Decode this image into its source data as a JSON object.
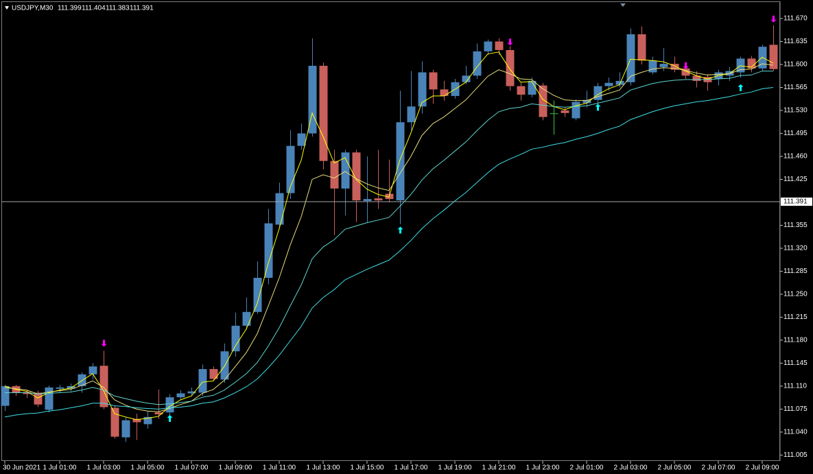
{
  "chart_data": {
    "type": "candlestick",
    "header": {
      "symbol": "USDJPY,M30",
      "ohlc": [
        "111.399",
        "111.404",
        "111.383",
        "111.391"
      ]
    },
    "categories": [
      "30 Jun 2021",
      null,
      null,
      null,
      null,
      "1 Jul 01:00",
      null,
      null,
      null,
      "1 Jul 03:00",
      null,
      null,
      null,
      "1 Jul 05:00",
      null,
      null,
      null,
      "1 Jul 07:00",
      null,
      null,
      null,
      "1 Jul 09:00",
      null,
      null,
      null,
      "1 Jul 11:00",
      null,
      null,
      null,
      "1 Jul 13:00",
      null,
      null,
      null,
      "1 Jul 15:00",
      null,
      null,
      null,
      "1 Jul 17:00",
      null,
      null,
      null,
      "1 Jul 19:00",
      null,
      null,
      null,
      "1 Jul 21:00",
      null,
      null,
      null,
      "1 Jul 23:00",
      null,
      null,
      null,
      "2 Jul 01:00",
      null,
      null,
      null,
      "2 Jul 03:00",
      null,
      null,
      null,
      "2 Jul 05:00",
      null,
      null,
      null,
      "2 Jul 07:00",
      null,
      null,
      null,
      "2 Jul 09:00",
      null
    ],
    "open": [
      111.08,
      111.11,
      111.101,
      111.1,
      111.074,
      111.106,
      111.106,
      111.11,
      111.128,
      111.141,
      111.077,
      111.032,
      111.06,
      111.052,
      111.07,
      111.07,
      111.093,
      111.099,
      111.1,
      111.136,
      111.12,
      111.163,
      111.202,
      111.223,
      111.275,
      111.356,
      111.404,
      111.476,
      111.495,
      111.598,
      111.453,
      111.411,
      111.466,
      111.392,
      111.396,
      111.403,
      111.393,
      111.512,
      111.536,
      111.588,
      111.562,
      111.552,
      111.573,
      111.583,
      111.62,
      111.635,
      111.622,
      111.567,
      111.554,
      111.568,
      111.525,
      111.53,
      111.518,
      111.541,
      111.546,
      111.567,
      111.569,
      111.573,
      111.646,
      111.588,
      111.596,
      111.601,
      111.594,
      111.583,
      111.581,
      111.578,
      111.583,
      111.588,
      111.609,
      111.594,
      111.63
    ],
    "high": [
      111.112,
      111.112,
      111.104,
      111.103,
      111.111,
      111.112,
      111.114,
      111.131,
      111.145,
      111.164,
      111.08,
      111.062,
      111.068,
      111.072,
      111.105,
      111.098,
      111.104,
      111.108,
      111.143,
      111.14,
      111.175,
      111.222,
      111.245,
      111.3,
      111.38,
      111.42,
      111.5,
      111.51,
      111.64,
      111.603,
      111.47,
      111.47,
      111.47,
      111.46,
      111.47,
      111.455,
      111.56,
      111.59,
      111.605,
      111.592,
      111.575,
      111.578,
      111.598,
      111.632,
      111.638,
      111.64,
      111.628,
      111.572,
      111.58,
      111.572,
      111.545,
      111.535,
      111.547,
      111.56,
      111.572,
      111.58,
      111.588,
      111.655,
      111.658,
      111.612,
      111.625,
      111.612,
      111.6,
      111.59,
      111.585,
      111.592,
      111.596,
      111.612,
      111.613,
      111.63,
      111.66
    ],
    "low": [
      111.072,
      111.095,
      111.092,
      111.078,
      111.07,
      111.1,
      111.102,
      111.1,
      111.12,
      111.075,
      111.03,
      111.025,
      111.028,
      111.045,
      111.06,
      111.06,
      111.09,
      111.096,
      111.095,
      111.118,
      111.115,
      111.155,
      111.196,
      111.22,
      111.265,
      111.35,
      111.395,
      111.47,
      111.49,
      111.44,
      111.34,
      111.37,
      111.36,
      111.36,
      111.38,
      111.39,
      111.357,
      111.5,
      111.525,
      111.54,
      111.545,
      111.548,
      111.57,
      111.578,
      111.615,
      111.615,
      111.56,
      111.545,
      111.55,
      111.515,
      111.493,
      111.52,
      111.515,
      111.535,
      111.54,
      111.56,
      111.565,
      111.568,
      111.6,
      111.585,
      111.59,
      111.588,
      111.578,
      111.565,
      111.56,
      111.568,
      111.575,
      111.58,
      111.588,
      111.59,
      111.59
    ],
    "close": [
      111.11,
      111.1,
      111.098,
      111.082,
      111.108,
      111.108,
      111.11,
      111.128,
      111.14,
      111.078,
      111.033,
      111.058,
      111.055,
      111.063,
      111.067,
      111.093,
      111.099,
      111.102,
      111.136,
      111.121,
      111.163,
      111.202,
      111.223,
      111.275,
      111.358,
      111.404,
      111.476,
      111.495,
      111.598,
      111.453,
      111.411,
      111.466,
      111.393,
      111.395,
      111.393,
      111.395,
      111.512,
      111.536,
      111.588,
      111.562,
      111.552,
      111.573,
      111.583,
      111.62,
      111.635,
      111.622,
      111.567,
      111.554,
      111.575,
      111.52,
      111.525,
      111.526,
      111.543,
      111.546,
      111.567,
      111.572,
      111.575,
      111.646,
      111.606,
      111.606,
      111.601,
      111.592,
      111.583,
      111.575,
      111.573,
      111.588,
      111.59,
      111.609,
      111.594,
      111.627,
      111.593
    ],
    "up_color": "#4a83b8",
    "down_color": "#c9605c",
    "doji_color": "#3fc43f",
    "series": [
      {
        "color": "#ffff00",
        "values": [
          111.11,
          111.105,
          111.102,
          111.092,
          111.1,
          111.104,
          111.107,
          111.118,
          111.129,
          111.103,
          111.068,
          111.063,
          111.059,
          111.061,
          111.064,
          111.079,
          111.089,
          111.095,
          111.116,
          111.118,
          111.14,
          111.171,
          111.197,
          111.236,
          111.297,
          111.35,
          111.413,
          111.454,
          111.526,
          111.49,
          111.45,
          111.458,
          111.425,
          111.41,
          111.402,
          111.398,
          111.455,
          111.496,
          111.542,
          111.552,
          111.552,
          111.562,
          111.573,
          111.596,
          111.616,
          111.619,
          111.593,
          111.573,
          111.574,
          111.547,
          111.536,
          111.531,
          111.537,
          111.541,
          111.554,
          111.563,
          111.569,
          111.608,
          111.607,
          111.606,
          111.604,
          111.598,
          111.59,
          111.583,
          111.578,
          111.583,
          111.586,
          111.598,
          111.596,
          111.611,
          111.602
        ]
      },
      {
        "color": "#e8e07a",
        "values": [
          111.108,
          111.106,
          111.104,
          111.098,
          111.101,
          111.103,
          111.105,
          111.111,
          111.118,
          111.108,
          111.089,
          111.081,
          111.075,
          111.072,
          111.071,
          111.076,
          111.082,
          111.087,
          111.099,
          111.105,
          111.119,
          111.14,
          111.161,
          111.19,
          111.232,
          111.275,
          111.325,
          111.368,
          111.425,
          111.432,
          111.427,
          111.437,
          111.426,
          111.418,
          111.412,
          111.408,
          111.434,
          111.46,
          111.492,
          111.51,
          111.52,
          111.533,
          111.546,
          111.564,
          111.582,
          111.592,
          111.586,
          111.578,
          111.577,
          111.563,
          111.553,
          111.546,
          111.545,
          111.545,
          111.551,
          111.556,
          111.561,
          111.582,
          111.588,
          111.593,
          111.595,
          111.594,
          111.591,
          111.587,
          111.584,
          111.585,
          111.586,
          111.592,
          111.593,
          111.601,
          111.599
        ]
      },
      {
        "color": "#5fd6cf",
        "values": [
          111.1,
          111.1,
          111.1,
          111.098,
          111.099,
          111.1,
          111.101,
          111.104,
          111.108,
          111.104,
          111.095,
          111.091,
          111.087,
          111.084,
          111.082,
          111.083,
          111.085,
          111.087,
          111.093,
          111.096,
          111.104,
          111.116,
          111.129,
          111.146,
          111.171,
          111.199,
          111.232,
          111.264,
          111.304,
          111.322,
          111.333,
          111.349,
          111.354,
          111.359,
          111.363,
          111.367,
          111.384,
          111.402,
          111.424,
          111.441,
          111.454,
          111.468,
          111.482,
          111.499,
          111.515,
          111.528,
          111.533,
          111.535,
          111.54,
          111.538,
          111.536,
          111.535,
          111.536,
          111.537,
          111.541,
          111.545,
          111.549,
          111.561,
          111.566,
          111.571,
          111.574,
          111.576,
          111.577,
          111.577,
          111.577,
          111.578,
          111.579,
          111.583,
          111.584,
          111.59,
          111.59
        ]
      },
      {
        "color": "#40e0e8",
        "values": [
          111.063,
          111.066,
          111.068,
          111.069,
          111.072,
          111.074,
          111.077,
          111.08,
          111.084,
          111.084,
          111.08,
          111.079,
          111.077,
          111.076,
          111.075,
          111.077,
          111.078,
          111.08,
          111.084,
          111.086,
          111.092,
          111.1,
          111.109,
          111.121,
          111.138,
          111.157,
          111.179,
          111.201,
          111.229,
          111.245,
          111.257,
          111.272,
          111.28,
          111.288,
          111.295,
          111.302,
          111.316,
          111.332,
          111.35,
          111.365,
          111.378,
          111.392,
          111.405,
          111.42,
          111.435,
          111.448,
          111.456,
          111.463,
          111.471,
          111.474,
          111.478,
          111.481,
          111.486,
          111.49,
          111.495,
          111.501,
          111.506,
          111.516,
          111.522,
          111.528,
          111.533,
          111.537,
          111.54,
          111.543,
          111.545,
          111.548,
          111.551,
          111.555,
          111.558,
          111.563,
          111.565
        ]
      }
    ],
    "sell_arrows": {
      "color": "#ff00ff",
      "points": [
        {
          "x": 9,
          "y": 111.17
        },
        {
          "x": 46,
          "y": 111.629
        },
        {
          "x": 62,
          "y": 111.593
        },
        {
          "x": 70,
          "y": 111.664
        }
      ]
    },
    "buy_arrows": {
      "color": "#00ffff",
      "points": [
        {
          "x": 15,
          "y": 111.066
        },
        {
          "x": 36,
          "y": 111.353
        },
        {
          "x": 54,
          "y": 111.54
        },
        {
          "x": 67,
          "y": 111.57
        }
      ]
    },
    "current_price": 111.391,
    "ylim": [
      110.996,
      111.693
    ],
    "yticks": [
      {
        "value": 111.67,
        "label": "111.670"
      },
      {
        "value": 111.635,
        "label": "111.635"
      },
      {
        "value": 111.6,
        "label": "111.600"
      },
      {
        "value": 111.565,
        "label": "111.565"
      },
      {
        "value": 111.53,
        "label": "111.530"
      },
      {
        "value": 111.495,
        "label": "111.495"
      },
      {
        "value": 111.46,
        "label": "111.460"
      },
      {
        "value": 111.425,
        "label": "111.425"
      },
      {
        "value": 111.355,
        "label": "111.355"
      },
      {
        "value": 111.32,
        "label": "111.320"
      },
      {
        "value": 111.285,
        "label": "111.285"
      },
      {
        "value": 111.25,
        "label": "111.250"
      },
      {
        "value": 111.215,
        "label": "111.215"
      },
      {
        "value": 111.18,
        "label": "111.180"
      },
      {
        "value": 111.145,
        "label": "111.145"
      },
      {
        "value": 111.11,
        "label": "111.110"
      },
      {
        "value": 111.075,
        "label": "111.075"
      },
      {
        "value": 111.04,
        "label": "111.040"
      },
      {
        "value": 111.005,
        "label": "111.005"
      }
    ]
  }
}
